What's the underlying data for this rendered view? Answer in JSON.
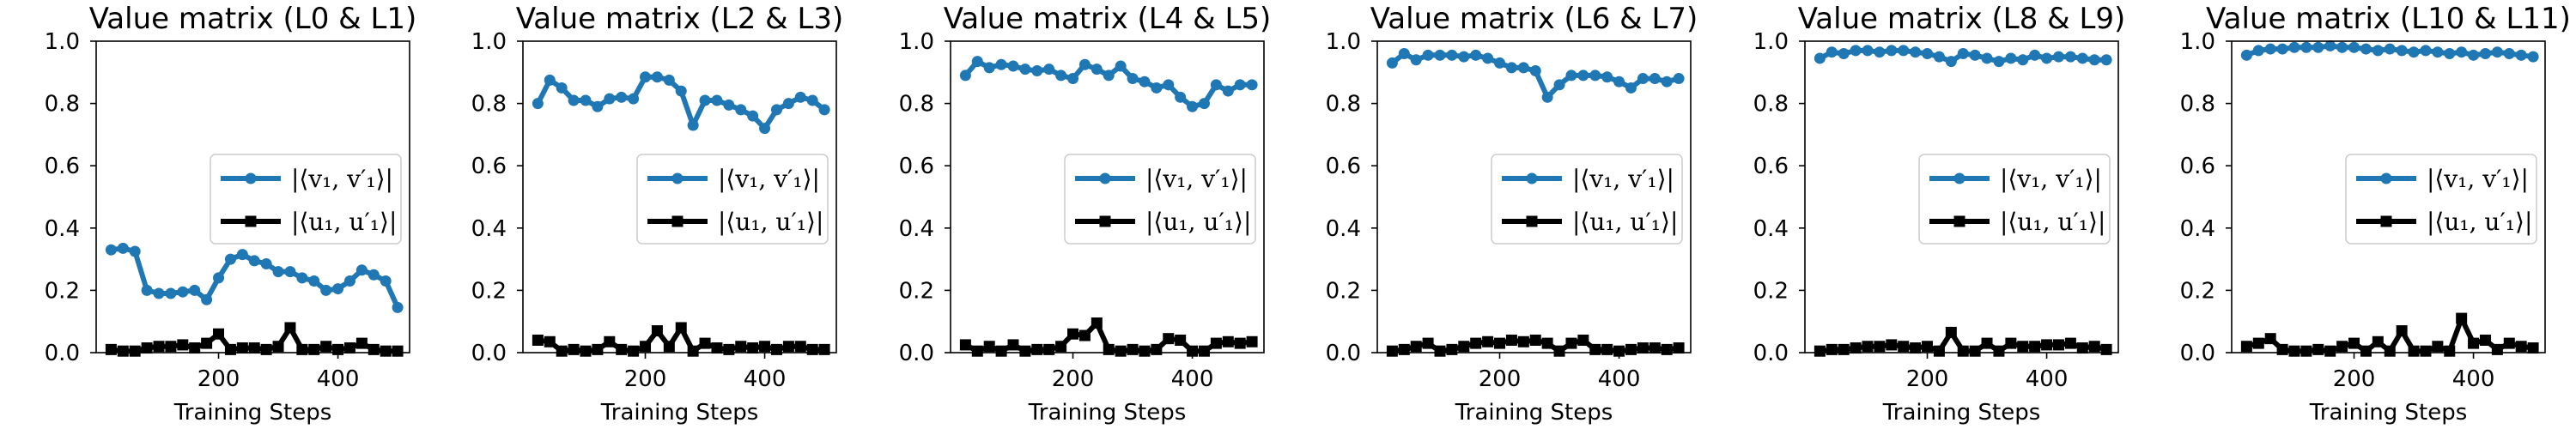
{
  "chart_data": [
    {
      "type": "line",
      "title": "Value matrix (L0 & L1)",
      "xlabel": "Training Steps",
      "ylabel": "",
      "xticks": [
        200,
        400
      ],
      "yticks": [
        0.0,
        0.2,
        0.4,
        0.6,
        0.8,
        1.0
      ],
      "xlim": [
        -5,
        520
      ],
      "ylim": [
        0.0,
        1.0
      ],
      "legend_position": "center-right",
      "series": [
        {
          "name": "|⟨v₁, v′₁⟩|",
          "color": "#1f77b4",
          "marker": "circle",
          "x": [
            20,
            40,
            60,
            80,
            100,
            120,
            140,
            160,
            180,
            200,
            220,
            240,
            260,
            280,
            300,
            320,
            340,
            360,
            380,
            400,
            420,
            440,
            460,
            480,
            500
          ],
          "values": [
            0.33,
            0.335,
            0.325,
            0.2,
            0.19,
            0.19,
            0.195,
            0.2,
            0.17,
            0.24,
            0.3,
            0.315,
            0.295,
            0.285,
            0.26,
            0.26,
            0.24,
            0.23,
            0.2,
            0.205,
            0.23,
            0.265,
            0.25,
            0.23,
            0.145
          ]
        },
        {
          "name": "|⟨u₁, u′₁⟩|",
          "color": "#000000",
          "marker": "square",
          "x": [
            20,
            40,
            60,
            80,
            100,
            120,
            140,
            160,
            180,
            200,
            220,
            240,
            260,
            280,
            300,
            320,
            340,
            360,
            380,
            400,
            420,
            440,
            460,
            480,
            500
          ],
          "values": [
            0.01,
            0.005,
            0.005,
            0.015,
            0.02,
            0.02,
            0.025,
            0.015,
            0.03,
            0.06,
            0.01,
            0.015,
            0.015,
            0.01,
            0.02,
            0.08,
            0.01,
            0.01,
            0.02,
            0.01,
            0.015,
            0.03,
            0.01,
            0.005,
            0.005
          ]
        }
      ]
    },
    {
      "type": "line",
      "title": "Value matrix (L2 & L3)",
      "xlabel": "Training Steps",
      "ylabel": "",
      "xticks": [
        200,
        400
      ],
      "yticks": [
        0.0,
        0.2,
        0.4,
        0.6,
        0.8,
        1.0
      ],
      "xlim": [
        -5,
        520
      ],
      "ylim": [
        0.0,
        1.0
      ],
      "legend_position": "center-right",
      "series": [
        {
          "name": "|⟨v₁, v′₁⟩|",
          "color": "#1f77b4",
          "marker": "circle",
          "x": [
            20,
            40,
            60,
            80,
            100,
            120,
            140,
            160,
            180,
            200,
            220,
            240,
            260,
            280,
            300,
            320,
            340,
            360,
            380,
            400,
            420,
            440,
            460,
            480,
            500
          ],
          "values": [
            0.8,
            0.875,
            0.85,
            0.81,
            0.81,
            0.79,
            0.815,
            0.82,
            0.815,
            0.885,
            0.885,
            0.875,
            0.84,
            0.73,
            0.81,
            0.81,
            0.795,
            0.78,
            0.76,
            0.72,
            0.78,
            0.8,
            0.82,
            0.81,
            0.78
          ]
        },
        {
          "name": "|⟨u₁, u′₁⟩|",
          "color": "#000000",
          "marker": "square",
          "x": [
            20,
            40,
            60,
            80,
            100,
            120,
            140,
            160,
            180,
            200,
            220,
            240,
            260,
            280,
            300,
            320,
            340,
            360,
            380,
            400,
            420,
            440,
            460,
            480,
            500
          ],
          "values": [
            0.04,
            0.035,
            0.005,
            0.01,
            0.005,
            0.01,
            0.035,
            0.01,
            0.005,
            0.02,
            0.07,
            0.02,
            0.08,
            0.005,
            0.03,
            0.015,
            0.01,
            0.02,
            0.015,
            0.02,
            0.01,
            0.02,
            0.02,
            0.01,
            0.01
          ]
        }
      ]
    },
    {
      "type": "line",
      "title": "Value matrix (L4 & L5)",
      "xlabel": "Training Steps",
      "ylabel": "",
      "xticks": [
        200,
        400
      ],
      "yticks": [
        0.0,
        0.2,
        0.4,
        0.6,
        0.8,
        1.0
      ],
      "xlim": [
        -5,
        520
      ],
      "ylim": [
        0.0,
        1.0
      ],
      "legend_position": "center-right",
      "series": [
        {
          "name": "|⟨v₁, v′₁⟩|",
          "color": "#1f77b4",
          "marker": "circle",
          "x": [
            20,
            40,
            60,
            80,
            100,
            120,
            140,
            160,
            180,
            200,
            220,
            240,
            260,
            280,
            300,
            320,
            340,
            360,
            380,
            400,
            420,
            440,
            460,
            480,
            500
          ],
          "values": [
            0.89,
            0.935,
            0.915,
            0.925,
            0.92,
            0.91,
            0.905,
            0.91,
            0.89,
            0.88,
            0.925,
            0.91,
            0.89,
            0.92,
            0.88,
            0.87,
            0.85,
            0.86,
            0.82,
            0.79,
            0.8,
            0.86,
            0.84,
            0.86,
            0.86
          ]
        },
        {
          "name": "|⟨u₁, u′₁⟩|",
          "color": "#000000",
          "marker": "square",
          "x": [
            20,
            40,
            60,
            80,
            100,
            120,
            140,
            160,
            180,
            200,
            220,
            240,
            260,
            280,
            300,
            320,
            340,
            360,
            380,
            400,
            420,
            440,
            460,
            480,
            500
          ],
          "values": [
            0.025,
            0.005,
            0.02,
            0.005,
            0.025,
            0.005,
            0.01,
            0.01,
            0.02,
            0.06,
            0.055,
            0.095,
            0.01,
            0.005,
            0.01,
            0.005,
            0.01,
            0.045,
            0.04,
            0.005,
            0.005,
            0.03,
            0.035,
            0.03,
            0.035
          ]
        }
      ]
    },
    {
      "type": "line",
      "title": "Value matrix (L6 & L7)",
      "xlabel": "Training Steps",
      "ylabel": "",
      "xticks": [
        200,
        400
      ],
      "yticks": [
        0.0,
        0.2,
        0.4,
        0.6,
        0.8,
        1.0
      ],
      "xlim": [
        -5,
        520
      ],
      "ylim": [
        0.0,
        1.0
      ],
      "legend_position": "center-right",
      "series": [
        {
          "name": "|⟨v₁, v′₁⟩|",
          "color": "#1f77b4",
          "marker": "circle",
          "x": [
            20,
            40,
            60,
            80,
            100,
            120,
            140,
            160,
            180,
            200,
            220,
            240,
            260,
            280,
            300,
            320,
            340,
            360,
            380,
            400,
            420,
            440,
            460,
            480,
            500
          ],
          "values": [
            0.93,
            0.96,
            0.94,
            0.955,
            0.955,
            0.955,
            0.95,
            0.955,
            0.945,
            0.93,
            0.915,
            0.915,
            0.905,
            0.82,
            0.86,
            0.89,
            0.89,
            0.89,
            0.885,
            0.87,
            0.85,
            0.88,
            0.88,
            0.87,
            0.88
          ]
        },
        {
          "name": "|⟨u₁, u′₁⟩|",
          "color": "#000000",
          "marker": "square",
          "x": [
            20,
            40,
            60,
            80,
            100,
            120,
            140,
            160,
            180,
            200,
            220,
            240,
            260,
            280,
            300,
            320,
            340,
            360,
            380,
            400,
            420,
            440,
            460,
            480,
            500
          ],
          "values": [
            0.005,
            0.01,
            0.02,
            0.03,
            0.005,
            0.01,
            0.02,
            0.03,
            0.035,
            0.03,
            0.04,
            0.035,
            0.04,
            0.03,
            0.005,
            0.03,
            0.04,
            0.01,
            0.01,
            0.005,
            0.01,
            0.015,
            0.015,
            0.01,
            0.015
          ]
        }
      ]
    },
    {
      "type": "line",
      "title": "Value matrix (L8 & L9)",
      "xlabel": "Training Steps",
      "ylabel": "",
      "xticks": [
        200,
        400
      ],
      "yticks": [
        0.0,
        0.2,
        0.4,
        0.6,
        0.8,
        1.0
      ],
      "xlim": [
        -5,
        520
      ],
      "ylim": [
        0.0,
        1.0
      ],
      "legend_position": "center-right",
      "series": [
        {
          "name": "|⟨v₁, v′₁⟩|",
          "color": "#1f77b4",
          "marker": "circle",
          "x": [
            20,
            40,
            60,
            80,
            100,
            120,
            140,
            160,
            180,
            200,
            220,
            240,
            260,
            280,
            300,
            320,
            340,
            360,
            380,
            400,
            420,
            440,
            460,
            480,
            500
          ],
          "values": [
            0.945,
            0.965,
            0.96,
            0.97,
            0.97,
            0.965,
            0.97,
            0.97,
            0.965,
            0.96,
            0.95,
            0.935,
            0.96,
            0.955,
            0.945,
            0.935,
            0.945,
            0.94,
            0.955,
            0.945,
            0.95,
            0.95,
            0.945,
            0.94,
            0.94
          ]
        },
        {
          "name": "|⟨u₁, u′₁⟩|",
          "color": "#000000",
          "marker": "square",
          "x": [
            20,
            40,
            60,
            80,
            100,
            120,
            140,
            160,
            180,
            200,
            220,
            240,
            260,
            280,
            300,
            320,
            340,
            360,
            380,
            400,
            420,
            440,
            460,
            480,
            500
          ],
          "values": [
            0.005,
            0.01,
            0.01,
            0.015,
            0.02,
            0.02,
            0.025,
            0.02,
            0.015,
            0.02,
            0.005,
            0.065,
            0.005,
            0.005,
            0.03,
            0.005,
            0.03,
            0.02,
            0.02,
            0.025,
            0.025,
            0.03,
            0.015,
            0.02,
            0.01
          ]
        }
      ]
    },
    {
      "type": "line",
      "title": "Value matrix (L10 & L11)",
      "xlabel": "Training Steps",
      "ylabel": "",
      "xticks": [
        200,
        400
      ],
      "yticks": [
        0.0,
        0.2,
        0.4,
        0.6,
        0.8,
        1.0
      ],
      "xlim": [
        -5,
        520
      ],
      "ylim": [
        0.0,
        1.0
      ],
      "legend_position": "center-right",
      "series": [
        {
          "name": "|⟨v₁, v′₁⟩|",
          "color": "#1f77b4",
          "marker": "circle",
          "x": [
            20,
            40,
            60,
            80,
            100,
            120,
            140,
            160,
            180,
            200,
            220,
            240,
            260,
            280,
            300,
            320,
            340,
            360,
            380,
            400,
            420,
            440,
            460,
            480,
            500
          ],
          "values": [
            0.955,
            0.97,
            0.975,
            0.975,
            0.98,
            0.98,
            0.98,
            0.985,
            0.98,
            0.98,
            0.975,
            0.97,
            0.975,
            0.97,
            0.965,
            0.97,
            0.965,
            0.96,
            0.965,
            0.955,
            0.96,
            0.965,
            0.96,
            0.955,
            0.95
          ]
        },
        {
          "name": "|⟨u₁, u′₁⟩|",
          "color": "#000000",
          "marker": "square",
          "x": [
            20,
            40,
            60,
            80,
            100,
            120,
            140,
            160,
            180,
            200,
            220,
            240,
            260,
            280,
            300,
            320,
            340,
            360,
            380,
            400,
            420,
            440,
            460,
            480,
            500
          ],
          "values": [
            0.02,
            0.03,
            0.045,
            0.01,
            0.005,
            0.005,
            0.01,
            0.005,
            0.02,
            0.03,
            0.005,
            0.035,
            0.005,
            0.07,
            0.005,
            0.005,
            0.02,
            0.005,
            0.11,
            0.03,
            0.04,
            0.01,
            0.03,
            0.02,
            0.015
          ]
        }
      ]
    }
  ]
}
